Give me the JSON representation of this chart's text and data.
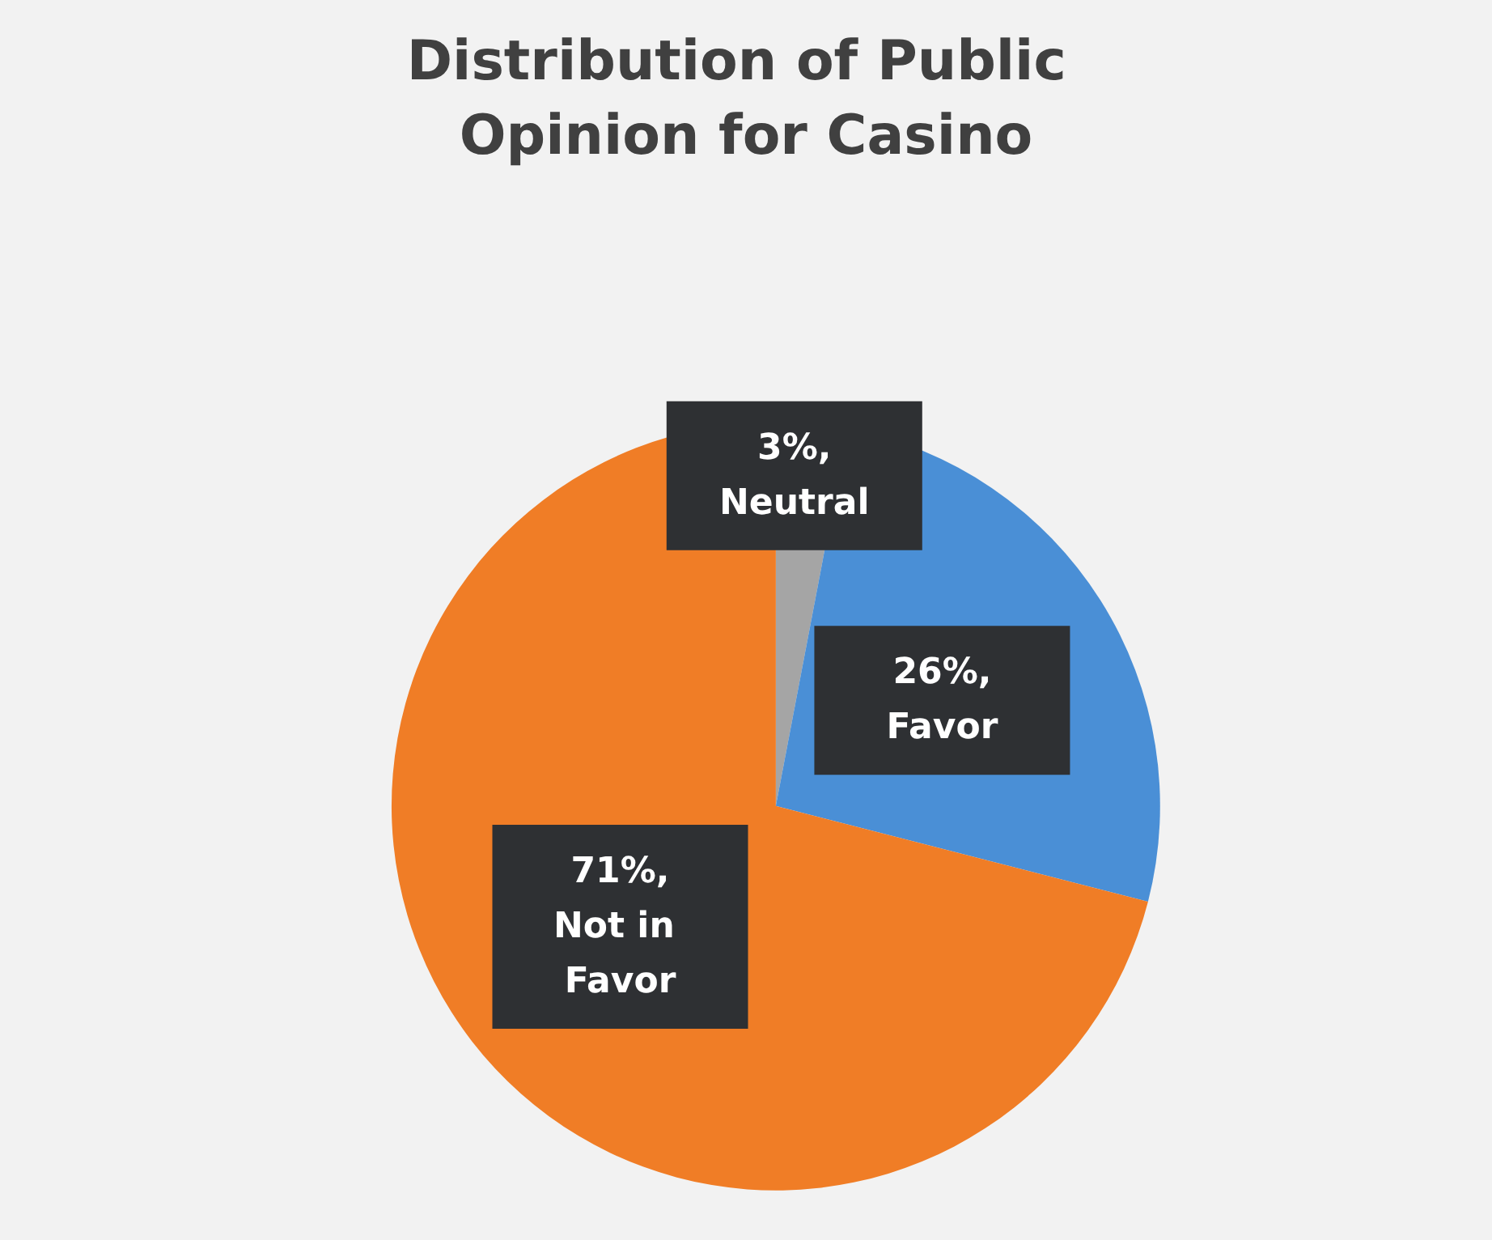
{
  "chart_data": {
    "type": "pie",
    "title": "Distribution of Public Opinion for Casino",
    "categories": [
      "Neutral",
      "Favor",
      "Not in Favor"
    ],
    "values": [
      3,
      26,
      71
    ],
    "colors": [
      "#a5a5a5",
      "#4a8fd6",
      "#f07d26"
    ],
    "value_labels": [
      "3%,",
      "26%,",
      "71%,"
    ],
    "legend": false
  }
}
